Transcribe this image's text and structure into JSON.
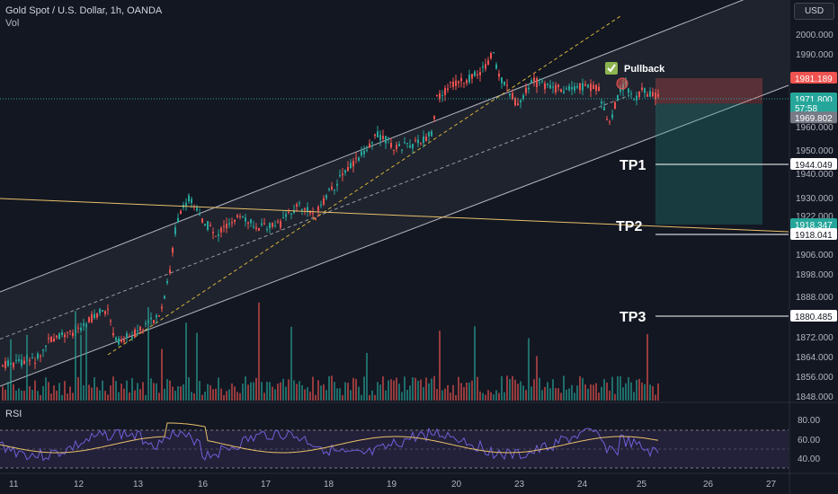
{
  "header": {
    "symbol_line": "Gold Spot / U.S. Dollar, 1h, OANDA",
    "volume_label": "Vol"
  },
  "currency_button": "USD",
  "rsi_label": "RSI",
  "colors": {
    "background": "#131722",
    "up": "#26a69a",
    "down": "#ef5350",
    "channel": "#b2b5be",
    "dashed_mid": "#d4b13a",
    "support_line": "#e8c06a",
    "price_line": "#26a69a",
    "tp_zone": "#1f4a45",
    "sl_zone": "#5a2b33",
    "rsi_line": "#6f5fd9",
    "rsi_ma": "#e8c06a",
    "rsi_band": "#2a2540"
  },
  "chart_data": {
    "type": "candlestick",
    "instrument": "Gold Spot / U.S. Dollar",
    "timeframe": "1h",
    "x_tick_labels": [
      "11",
      "12",
      "13",
      "16",
      "17",
      "18",
      "19",
      "20",
      "23",
      "24",
      "25",
      "26",
      "27"
    ],
    "price_axis_labels": [
      "2000.000",
      "1990.000",
      "1960.000",
      "1950.000",
      "1940.000",
      "1930.000",
      "1922.000",
      "1906.000",
      "1898.000",
      "1888.000",
      "1872.000",
      "1864.000",
      "1856.000",
      "1848.000"
    ],
    "ylim": [
      1844,
      2006
    ],
    "price_tags": [
      {
        "value": "1981.189",
        "color": "#ef5350"
      },
      {
        "value": "1971.800",
        "color": "#26a69a"
      },
      {
        "value": "57:58",
        "color": "#26a69a"
      },
      {
        "value": "1969.802",
        "color": "#787b86"
      },
      {
        "value": "1944.049",
        "color": "#ffffff"
      },
      {
        "value": "1918.347",
        "color": "#26a69a"
      },
      {
        "value": "1918.041",
        "color": "#ffffff"
      },
      {
        "value": "1880.485",
        "color": "#ffffff"
      }
    ],
    "annotations": [
      {
        "text": "Pullback",
        "price": 1985
      },
      {
        "text": "TP1",
        "price": 1944.049
      },
      {
        "text": "TP2",
        "price": 1918.041
      },
      {
        "text": "TP3",
        "price": 1880.485
      }
    ],
    "key_prices": {
      "last": 1971.8,
      "stop_loss": 1981.189,
      "entry": 1969.802,
      "tp1": 1944.049,
      "tp2": 1918.041,
      "tp3": 1880.485,
      "support_line_end": 1918.347
    },
    "rsi": {
      "axis_labels": [
        "80.00",
        "60.00",
        "40.00"
      ],
      "ylim": [
        30,
        90
      ],
      "upper_band": 70,
      "lower_band": 30
    }
  }
}
